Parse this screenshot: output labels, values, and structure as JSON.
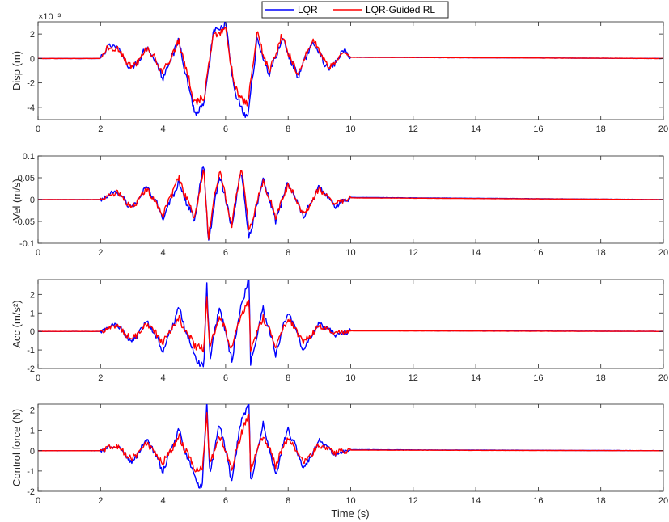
{
  "figure": {
    "xlabel": "Time (s)",
    "legend": {
      "placement": "top-center",
      "entries": [
        "LQR",
        "LQR-Guided RL"
      ]
    }
  },
  "colors": {
    "lqr": "#0000ff",
    "rl": "#ff0000",
    "axes": "#262626",
    "grid": "none"
  },
  "chart_data": [
    {
      "type": "line",
      "ylabel": "Disp (m)",
      "y_exponent_label": "×10⁻³",
      "xlim": [
        0,
        20
      ],
      "ylim": [
        -0.005,
        0.003
      ],
      "xticks": [
        0,
        2,
        4,
        6,
        8,
        10,
        12,
        14,
        16,
        18,
        20
      ],
      "yticks": [
        -0.004,
        -0.002,
        0,
        0.002
      ],
      "ytick_labels": [
        "-4",
        "-2",
        "0",
        "2"
      ],
      "grid": false,
      "series": [
        {
          "name": "LQR",
          "x": [
            0,
            2,
            2.2,
            2.5,
            3,
            3.5,
            4,
            4.5,
            5,
            5.3,
            5.6,
            6,
            6.3,
            6.7,
            7,
            7.4,
            7.8,
            8.3,
            8.8,
            9.3,
            9.8,
            10,
            20
          ],
          "y": [
            0,
            0,
            0.0009,
            0.001,
            -0.0009,
            0.001,
            -0.0015,
            0.0015,
            -0.0044,
            -0.004,
            0.002,
            0.0028,
            -0.003,
            -0.005,
            0.0015,
            -0.0013,
            0.0016,
            -0.0015,
            0.0014,
            -0.001,
            0.0007,
            0.0001,
            0
          ]
        },
        {
          "name": "LQR-Guided RL",
          "x": [
            0,
            2,
            2.2,
            2.5,
            3,
            3.5,
            4,
            4.5,
            5,
            5.3,
            5.6,
            6,
            6.3,
            6.7,
            7,
            7.4,
            7.8,
            8.3,
            8.8,
            9.3,
            9.8,
            10,
            20
          ],
          "y": [
            0,
            0,
            0.0008,
            0.0009,
            -0.0008,
            0.0009,
            -0.0012,
            0.0014,
            -0.0035,
            -0.0033,
            0.0018,
            0.0024,
            -0.0024,
            -0.004,
            0.002,
            -0.0011,
            0.0018,
            -0.0013,
            0.0015,
            -0.0008,
            0.0005,
            0.0001,
            0
          ]
        }
      ]
    },
    {
      "type": "line",
      "ylabel": "Vel (m/s)",
      "xlim": [
        0,
        20
      ],
      "ylim": [
        -0.1,
        0.1
      ],
      "xticks": [
        0,
        2,
        4,
        6,
        8,
        10,
        12,
        14,
        16,
        18,
        20
      ],
      "yticks": [
        -0.1,
        -0.05,
        0,
        0.05,
        0.1
      ],
      "ytick_labels": [
        "-0.1",
        "-0.05",
        "0",
        "0.05",
        "0.1"
      ],
      "grid": false,
      "series": [
        {
          "name": "LQR",
          "x": [
            0,
            2,
            2.5,
            3,
            3.5,
            4,
            4.5,
            5,
            5.3,
            5.45,
            5.8,
            6.2,
            6.5,
            6.75,
            7.2,
            7.6,
            8,
            8.5,
            9,
            9.5,
            10,
            20
          ],
          "y": [
            0,
            0,
            0.02,
            -0.02,
            0.03,
            -0.04,
            0.04,
            -0.05,
            0.085,
            -0.1,
            0.06,
            -0.06,
            0.07,
            -0.09,
            0.05,
            -0.05,
            0.04,
            -0.04,
            0.03,
            -0.015,
            0.005,
            0
          ]
        },
        {
          "name": "LQR-Guided RL",
          "x": [
            0,
            2,
            2.5,
            3,
            3.5,
            4,
            4.5,
            5,
            5.3,
            5.45,
            5.8,
            6.2,
            6.5,
            6.75,
            7.2,
            7.6,
            8,
            8.5,
            9,
            9.5,
            10,
            20
          ],
          "y": [
            0,
            0,
            0.018,
            -0.018,
            0.025,
            -0.035,
            0.05,
            -0.045,
            0.07,
            -0.085,
            0.07,
            -0.06,
            0.08,
            -0.07,
            0.045,
            -0.04,
            0.035,
            -0.035,
            0.025,
            -0.01,
            0.004,
            0
          ]
        }
      ]
    },
    {
      "type": "line",
      "ylabel": "Acc (m/s²)",
      "xlim": [
        0,
        20
      ],
      "ylim": [
        -2,
        2.8
      ],
      "xticks": [
        0,
        2,
        4,
        6,
        8,
        10,
        12,
        14,
        16,
        18,
        20
      ],
      "yticks": [
        -2,
        -1,
        0,
        1,
        2
      ],
      "ytick_labels": [
        "-2",
        "-1",
        "0",
        "1",
        "2"
      ],
      "grid": false,
      "series": [
        {
          "name": "LQR",
          "x": [
            0,
            2,
            2.5,
            3,
            3.5,
            4,
            4.5,
            5,
            5.3,
            5.4,
            5.5,
            5.8,
            6.2,
            6.5,
            6.75,
            6.8,
            7.2,
            7.6,
            8,
            8.5,
            9,
            9.5,
            10,
            20
          ],
          "y": [
            0,
            0,
            0.4,
            -0.6,
            0.6,
            -1.0,
            1.2,
            -1.3,
            -2.0,
            2.5,
            -1.5,
            1.3,
            -1.5,
            1.5,
            2.8,
            -1.7,
            1.3,
            -1.2,
            1.1,
            -1.0,
            0.5,
            -0.2,
            0.05,
            0
          ]
        },
        {
          "name": "LQR-Guided RL",
          "x": [
            0,
            2,
            2.5,
            3,
            3.5,
            4,
            4.5,
            5,
            5.3,
            5.4,
            5.5,
            5.8,
            6.2,
            6.5,
            6.75,
            6.8,
            7.2,
            7.6,
            8,
            8.5,
            9,
            9.5,
            10,
            20
          ],
          "y": [
            0,
            0,
            0.3,
            -0.4,
            0.4,
            -0.6,
            0.7,
            -0.7,
            -1.0,
            1.8,
            -0.9,
            0.8,
            -0.9,
            0.9,
            1.5,
            -1.0,
            0.8,
            -0.7,
            0.7,
            -0.6,
            0.3,
            -0.1,
            0.03,
            0
          ]
        }
      ]
    },
    {
      "type": "line",
      "ylabel": "Control force (N)",
      "xlim": [
        0,
        20
      ],
      "ylim": [
        -2,
        2.3
      ],
      "xticks": [
        0,
        2,
        4,
        6,
        8,
        10,
        12,
        14,
        16,
        18,
        20
      ],
      "yticks": [
        -2,
        -1,
        0,
        1,
        2
      ],
      "ytick_labels": [
        "-2",
        "-1",
        "0",
        "1",
        "2"
      ],
      "grid": false,
      "series": [
        {
          "name": "LQR",
          "x": [
            0,
            2,
            2.5,
            3,
            3.5,
            4,
            4.5,
            5,
            5.25,
            5.4,
            5.5,
            5.8,
            6.2,
            6.5,
            6.75,
            6.8,
            7.2,
            7.6,
            8,
            8.5,
            9,
            9.5,
            10,
            20
          ],
          "y": [
            0,
            0,
            0.3,
            -0.6,
            0.6,
            -1.0,
            1.0,
            -1.3,
            -1.9,
            2.3,
            -1.2,
            1.4,
            -1.5,
            1.5,
            2.3,
            -1.5,
            1.3,
            -1.2,
            1.1,
            -0.9,
            0.5,
            -0.2,
            0.05,
            0
          ]
        },
        {
          "name": "LQR-Guided RL",
          "x": [
            0,
            2,
            2.5,
            3,
            3.5,
            4,
            4.5,
            5,
            5.25,
            5.4,
            5.5,
            5.8,
            6.2,
            6.5,
            6.75,
            6.8,
            7.2,
            7.6,
            8,
            8.5,
            9,
            9.5,
            10,
            20
          ],
          "y": [
            0,
            0,
            0.25,
            -0.4,
            0.4,
            -0.6,
            0.7,
            -0.8,
            -1.0,
            1.8,
            -0.8,
            0.8,
            -0.9,
            0.9,
            1.7,
            -0.9,
            0.8,
            -0.7,
            0.7,
            -0.6,
            0.3,
            -0.1,
            0.03,
            0
          ]
        }
      ]
    }
  ]
}
